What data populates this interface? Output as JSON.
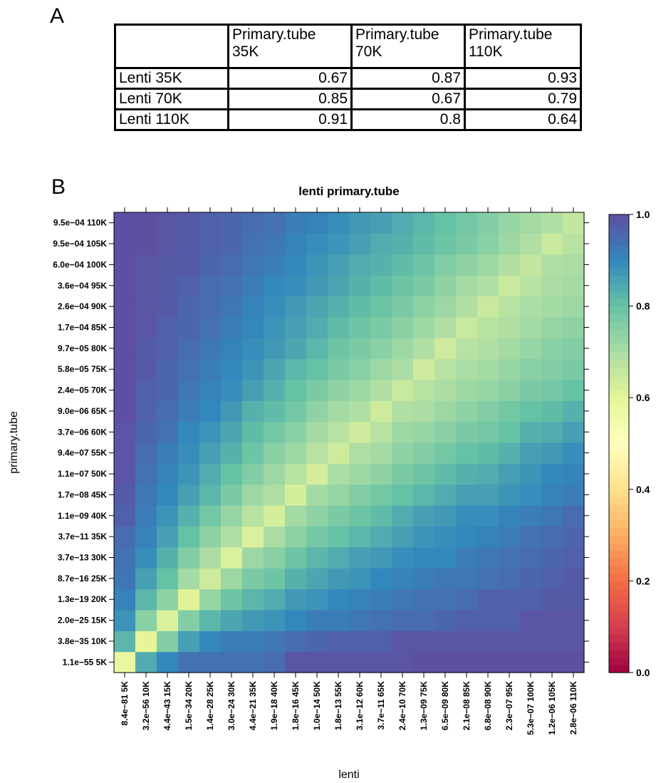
{
  "panel_labels": {
    "a": "A",
    "b": "B"
  },
  "table": {
    "columns": [
      "Primary.tube\n35K",
      "Primary.tube\n70K",
      "Primary.tube\n110K"
    ],
    "rows": [
      {
        "label": "Lenti 35K",
        "values": [
          "0.67",
          "0.87",
          "0.93"
        ]
      },
      {
        "label": "Lenti 70K",
        "values": [
          "0.85",
          "0.67",
          "0.79"
        ]
      },
      {
        "label": "Lenti 110K",
        "values": [
          "0.91",
          "0.8",
          "0.64"
        ]
      }
    ]
  },
  "chart_data": {
    "type": "heatmap",
    "title": "lenti primary.tube",
    "xlabel": "lenti",
    "ylabel": "primary.tube",
    "x_tick_labels": [
      "8.4e−81 5K",
      "3.2e−56 10K",
      "4.4e−43 15K",
      "1.5e−34 20K",
      "1.4e−28 25K",
      "3.0e−24 30K",
      "4.4e−21 35K",
      "1.9e−18 40K",
      "1.8e−16 45K",
      "1.0e−14 50K",
      "1.8e−13 55K",
      "3.1e−12 60K",
      "3.7e−11 65K",
      "2.4e−10 70K",
      "1.3e−09 75K",
      "6.5e−09 80K",
      "2.1e−08 85K",
      "6.8e−08 90K",
      "2.3e−07 95K",
      "5.3e−07 100K",
      "1.2e−06 105K",
      "2.8e−06 110K"
    ],
    "y_tick_labels": [
      "1.1e−55 5K",
      "3.8e−35 10K",
      "2.0e−25 15K",
      "1.3e−19 20K",
      "8.7e−16 25K",
      "3.7e−13 30K",
      "3.7e−11 35K",
      "1.1e−09 40K",
      "1.7e−08 45K",
      "1.1e−07 50K",
      "9.4e−07 55K",
      "3.7e−06 60K",
      "9.0e−06 65K",
      "2.4e−05 70K",
      "5.8e−05 75K",
      "9.7e−05 80K",
      "1.7e−04 85K",
      "2.6e−04 90K",
      "3.6e−04 95K",
      "6.0e−04 100K",
      "9.5e−04 105K",
      "9.5e−04 110K"
    ],
    "colorbar_ticks": [
      "0.0",
      "0.2",
      "0.4",
      "0.6",
      "0.8",
      "1.0"
    ],
    "zlim": [
      0,
      1
    ],
    "colorscale": [
      "#9e0142",
      "#d53e4f",
      "#f46d43",
      "#fdae61",
      "#fee08b",
      "#ffffbf",
      "#e6f598",
      "#abdda4",
      "#66c2a5",
      "#3288bd",
      "#5e4fa2"
    ],
    "values": [
      [
        0.58,
        0.84,
        0.9,
        0.94,
        0.94,
        0.94,
        0.94,
        0.95,
        0.99,
        0.99,
        0.99,
        0.99,
        0.99,
        0.99,
        1.0,
        1.0,
        1.0,
        1.0,
        1.0,
        1.0,
        1.0,
        1.0
      ],
      [
        0.82,
        0.6,
        0.76,
        0.86,
        0.9,
        0.92,
        0.92,
        0.93,
        0.95,
        0.96,
        0.97,
        0.97,
        0.97,
        0.99,
        0.99,
        0.99,
        0.99,
        0.99,
        0.99,
        0.99,
        0.99,
        0.99
      ],
      [
        0.88,
        0.75,
        0.62,
        0.76,
        0.82,
        0.85,
        0.87,
        0.88,
        0.9,
        0.92,
        0.92,
        0.93,
        0.94,
        0.95,
        0.95,
        0.96,
        0.97,
        0.97,
        0.97,
        0.99,
        0.99,
        0.99
      ],
      [
        0.91,
        0.82,
        0.74,
        0.61,
        0.73,
        0.79,
        0.82,
        0.84,
        0.87,
        0.88,
        0.9,
        0.91,
        0.92,
        0.93,
        0.94,
        0.94,
        0.95,
        0.97,
        0.97,
        0.97,
        0.98,
        0.98
      ],
      [
        0.93,
        0.86,
        0.8,
        0.71,
        0.64,
        0.72,
        0.77,
        0.79,
        0.83,
        0.85,
        0.87,
        0.88,
        0.9,
        0.91,
        0.92,
        0.93,
        0.93,
        0.94,
        0.95,
        0.96,
        0.97,
        0.98
      ],
      [
        0.94,
        0.89,
        0.83,
        0.76,
        0.7,
        0.62,
        0.72,
        0.75,
        0.79,
        0.82,
        0.84,
        0.86,
        0.87,
        0.89,
        0.9,
        0.9,
        0.92,
        0.93,
        0.94,
        0.95,
        0.96,
        0.97
      ],
      [
        0.95,
        0.91,
        0.86,
        0.8,
        0.74,
        0.69,
        0.62,
        0.7,
        0.74,
        0.78,
        0.8,
        0.82,
        0.84,
        0.86,
        0.88,
        0.89,
        0.9,
        0.91,
        0.92,
        0.94,
        0.95,
        0.96
      ],
      [
        0.97,
        0.92,
        0.88,
        0.83,
        0.78,
        0.73,
        0.68,
        0.63,
        0.71,
        0.74,
        0.77,
        0.79,
        0.81,
        0.84,
        0.86,
        0.87,
        0.89,
        0.89,
        0.91,
        0.92,
        0.93,
        0.95
      ],
      [
        0.98,
        0.93,
        0.9,
        0.86,
        0.82,
        0.77,
        0.72,
        0.69,
        0.63,
        0.71,
        0.73,
        0.76,
        0.78,
        0.8,
        0.82,
        0.84,
        0.86,
        0.86,
        0.88,
        0.89,
        0.91,
        0.92
      ],
      [
        0.99,
        0.94,
        0.91,
        0.88,
        0.84,
        0.8,
        0.76,
        0.72,
        0.68,
        0.63,
        0.7,
        0.72,
        0.74,
        0.77,
        0.79,
        0.81,
        0.83,
        0.84,
        0.86,
        0.88,
        0.9,
        0.91
      ],
      [
        0.99,
        0.95,
        0.92,
        0.89,
        0.86,
        0.83,
        0.79,
        0.75,
        0.72,
        0.68,
        0.64,
        0.69,
        0.71,
        0.74,
        0.76,
        0.78,
        0.8,
        0.81,
        0.83,
        0.86,
        0.87,
        0.89
      ],
      [
        0.99,
        0.96,
        0.94,
        0.9,
        0.88,
        0.85,
        0.81,
        0.78,
        0.75,
        0.71,
        0.68,
        0.64,
        0.68,
        0.72,
        0.73,
        0.75,
        0.77,
        0.78,
        0.8,
        0.83,
        0.84,
        0.86
      ],
      [
        1.0,
        0.97,
        0.95,
        0.92,
        0.9,
        0.87,
        0.83,
        0.81,
        0.78,
        0.74,
        0.71,
        0.69,
        0.64,
        0.69,
        0.7,
        0.72,
        0.74,
        0.76,
        0.78,
        0.8,
        0.81,
        0.83
      ],
      [
        1.0,
        0.97,
        0.96,
        0.93,
        0.91,
        0.89,
        0.86,
        0.83,
        0.8,
        0.77,
        0.74,
        0.72,
        0.69,
        0.65,
        0.68,
        0.7,
        0.72,
        0.73,
        0.75,
        0.77,
        0.78,
        0.8
      ],
      [
        1.0,
        0.98,
        0.96,
        0.94,
        0.92,
        0.9,
        0.88,
        0.85,
        0.82,
        0.8,
        0.77,
        0.75,
        0.72,
        0.7,
        0.64,
        0.68,
        0.7,
        0.71,
        0.73,
        0.75,
        0.76,
        0.77
      ],
      [
        1.0,
        0.98,
        0.97,
        0.95,
        0.93,
        0.91,
        0.89,
        0.87,
        0.85,
        0.82,
        0.79,
        0.77,
        0.75,
        0.72,
        0.69,
        0.64,
        0.68,
        0.69,
        0.71,
        0.73,
        0.75,
        0.76
      ],
      [
        1.0,
        0.99,
        0.97,
        0.96,
        0.94,
        0.92,
        0.9,
        0.88,
        0.86,
        0.84,
        0.81,
        0.79,
        0.77,
        0.75,
        0.72,
        0.69,
        0.65,
        0.68,
        0.69,
        0.71,
        0.73,
        0.74
      ],
      [
        1.0,
        0.99,
        0.98,
        0.96,
        0.95,
        0.93,
        0.91,
        0.89,
        0.87,
        0.85,
        0.83,
        0.81,
        0.79,
        0.77,
        0.74,
        0.72,
        0.69,
        0.65,
        0.68,
        0.7,
        0.71,
        0.72
      ],
      [
        1.0,
        0.99,
        0.98,
        0.97,
        0.95,
        0.94,
        0.92,
        0.9,
        0.89,
        0.87,
        0.85,
        0.83,
        0.81,
        0.79,
        0.77,
        0.74,
        0.71,
        0.69,
        0.65,
        0.68,
        0.7,
        0.71
      ],
      [
        1.0,
        0.99,
        0.98,
        0.98,
        0.96,
        0.95,
        0.93,
        0.92,
        0.9,
        0.88,
        0.86,
        0.84,
        0.83,
        0.81,
        0.79,
        0.76,
        0.74,
        0.72,
        0.69,
        0.66,
        0.69,
        0.7
      ],
      [
        1.0,
        1.0,
        0.99,
        0.98,
        0.97,
        0.96,
        0.94,
        0.93,
        0.91,
        0.89,
        0.88,
        0.86,
        0.84,
        0.83,
        0.81,
        0.79,
        0.77,
        0.75,
        0.72,
        0.69,
        0.65,
        0.68
      ],
      [
        1.0,
        1.0,
        0.99,
        0.98,
        0.97,
        0.96,
        0.95,
        0.94,
        0.92,
        0.91,
        0.89,
        0.87,
        0.86,
        0.84,
        0.82,
        0.8,
        0.78,
        0.76,
        0.73,
        0.71,
        0.69,
        0.66
      ]
    ]
  }
}
